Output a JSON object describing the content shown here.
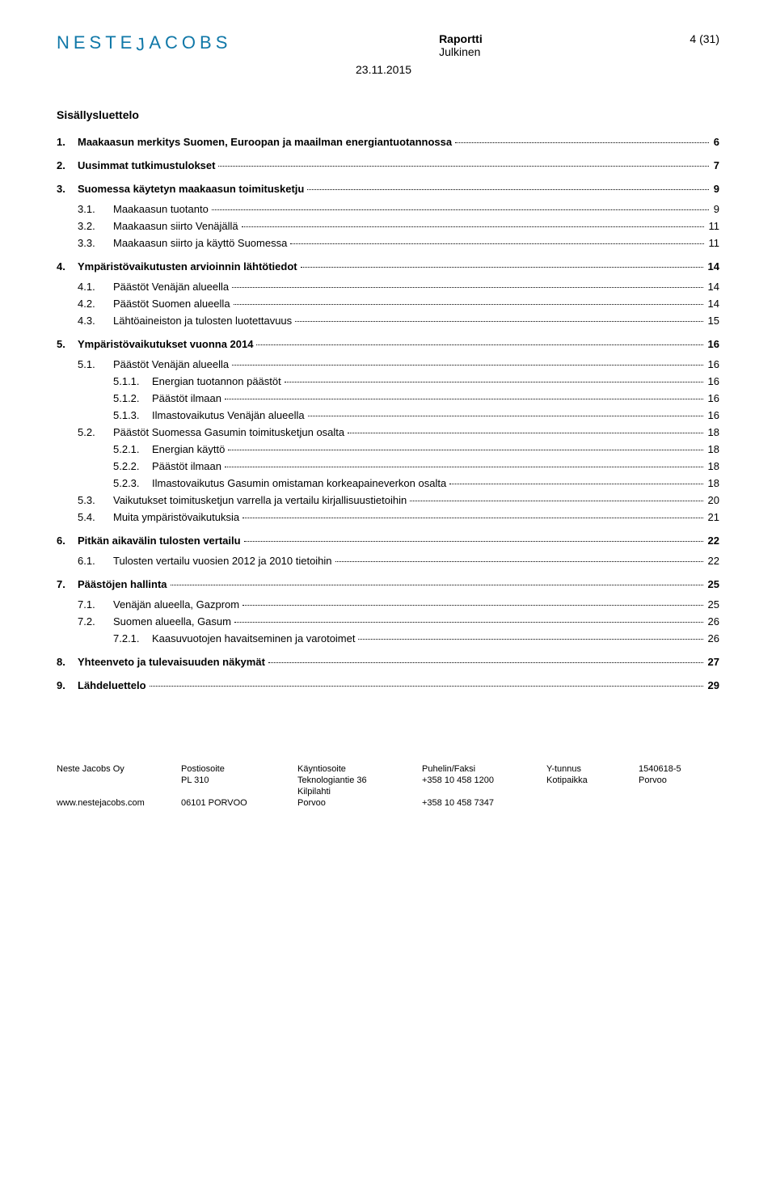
{
  "header": {
    "logo": "NESTE JACOBS",
    "title": "Raportti",
    "subtitle": "Julkinen",
    "pageinfo": "4 (31)",
    "date": "23.11.2015"
  },
  "toc_title": "Sisällysluettelo",
  "toc": [
    {
      "level": 1,
      "num": "1.",
      "label": "Maakaasun merkitys Suomen, Euroopan ja maailman energiantuotannossa",
      "page": "6"
    },
    {
      "level": 1,
      "num": "2.",
      "label": "Uusimmat tutkimustulokset",
      "page": "7"
    },
    {
      "level": 1,
      "num": "3.",
      "label": "Suomessa käytetyn maakaasun toimitusketju",
      "page": "9"
    },
    {
      "level": 2,
      "num": "3.1.",
      "label": "Maakaasun tuotanto",
      "page": "9"
    },
    {
      "level": 2,
      "num": "3.2.",
      "label": "Maakaasun siirto Venäjällä",
      "page": "11"
    },
    {
      "level": 2,
      "num": "3.3.",
      "label": "Maakaasun siirto ja käyttö Suomessa",
      "page": "11"
    },
    {
      "level": 1,
      "num": "4.",
      "label": "Ympäristövaikutusten arvioinnin lähtötiedot",
      "page": "14"
    },
    {
      "level": 2,
      "num": "4.1.",
      "label": "Päästöt Venäjän alueella",
      "page": "14"
    },
    {
      "level": 2,
      "num": "4.2.",
      "label": "Päästöt Suomen alueella",
      "page": "14"
    },
    {
      "level": 2,
      "num": "4.3.",
      "label": "Lähtöaineiston ja tulosten luotettavuus",
      "page": "15"
    },
    {
      "level": 1,
      "num": "5.",
      "label": "Ympäristövaikutukset vuonna 2014",
      "page": "16"
    },
    {
      "level": 2,
      "num": "5.1.",
      "label": "Päästöt Venäjän alueella",
      "page": "16"
    },
    {
      "level": 3,
      "num": "5.1.1.",
      "label": "Energian tuotannon päästöt",
      "page": "16"
    },
    {
      "level": 3,
      "num": "5.1.2.",
      "label": "Päästöt ilmaan",
      "page": "16"
    },
    {
      "level": 3,
      "num": "5.1.3.",
      "label": "Ilmastovaikutus Venäjän alueella",
      "page": "16"
    },
    {
      "level": 2,
      "num": "5.2.",
      "label": "Päästöt Suomessa Gasumin toimitusketjun osalta",
      "page": "18"
    },
    {
      "level": 3,
      "num": "5.2.1.",
      "label": "Energian käyttö",
      "page": "18"
    },
    {
      "level": 3,
      "num": "5.2.2.",
      "label": "Päästöt ilmaan",
      "page": "18"
    },
    {
      "level": 3,
      "num": "5.2.3.",
      "label": "Ilmastovaikutus Gasumin omistaman korkeapaineverkon osalta",
      "page": "18"
    },
    {
      "level": 2,
      "num": "5.3.",
      "label": "Vaikutukset toimitusketjun varrella ja vertailu kirjallisuustietoihin",
      "page": "20"
    },
    {
      "level": 2,
      "num": "5.4.",
      "label": "Muita ympäristövaikutuksia",
      "page": "21"
    },
    {
      "level": 1,
      "num": "6.",
      "label": "Pitkän aikavälin tulosten vertailu",
      "page": "22"
    },
    {
      "level": 2,
      "num": "6.1.",
      "label": "Tulosten vertailu vuosien 2012 ja 2010 tietoihin",
      "page": "22"
    },
    {
      "level": 1,
      "num": "7.",
      "label": "Päästöjen hallinta",
      "page": "25"
    },
    {
      "level": 2,
      "num": "7.1.",
      "label": "Venäjän alueella, Gazprom",
      "page": "25"
    },
    {
      "level": 2,
      "num": "7.2.",
      "label": "Suomen alueella, Gasum",
      "page": "26"
    },
    {
      "level": 3,
      "num": "7.2.1.",
      "label": "Kaasuvuotojen havaitseminen ja varotoimet",
      "page": "26"
    },
    {
      "level": 1,
      "num": "8.",
      "label": "Yhteenveto ja tulevaisuuden näkymät",
      "page": "27"
    },
    {
      "level": 1,
      "num": "9.",
      "label": "Lähdeluettelo",
      "page": "29"
    }
  ],
  "footer": {
    "company": "Neste Jacobs Oy",
    "website": "www.nestejacobs.com",
    "post_label": "Postiosoite",
    "post_1": "PL 310",
    "post_2": "06101 PORVOO",
    "visit_label": "Käyntiosoite",
    "visit_1": "Teknologiantie 36",
    "visit_2": "Kilpilahti",
    "visit_3": "Porvoo",
    "phone_label": "Puhelin/Faksi",
    "phone_1": "+358 10 458 1200",
    "phone_2": "+358 10 458 7347",
    "yt_label": "Y-tunnus",
    "yt_1": "Kotipaikka",
    "yt_num": "1540618-5",
    "yt_city": "Porvoo"
  }
}
